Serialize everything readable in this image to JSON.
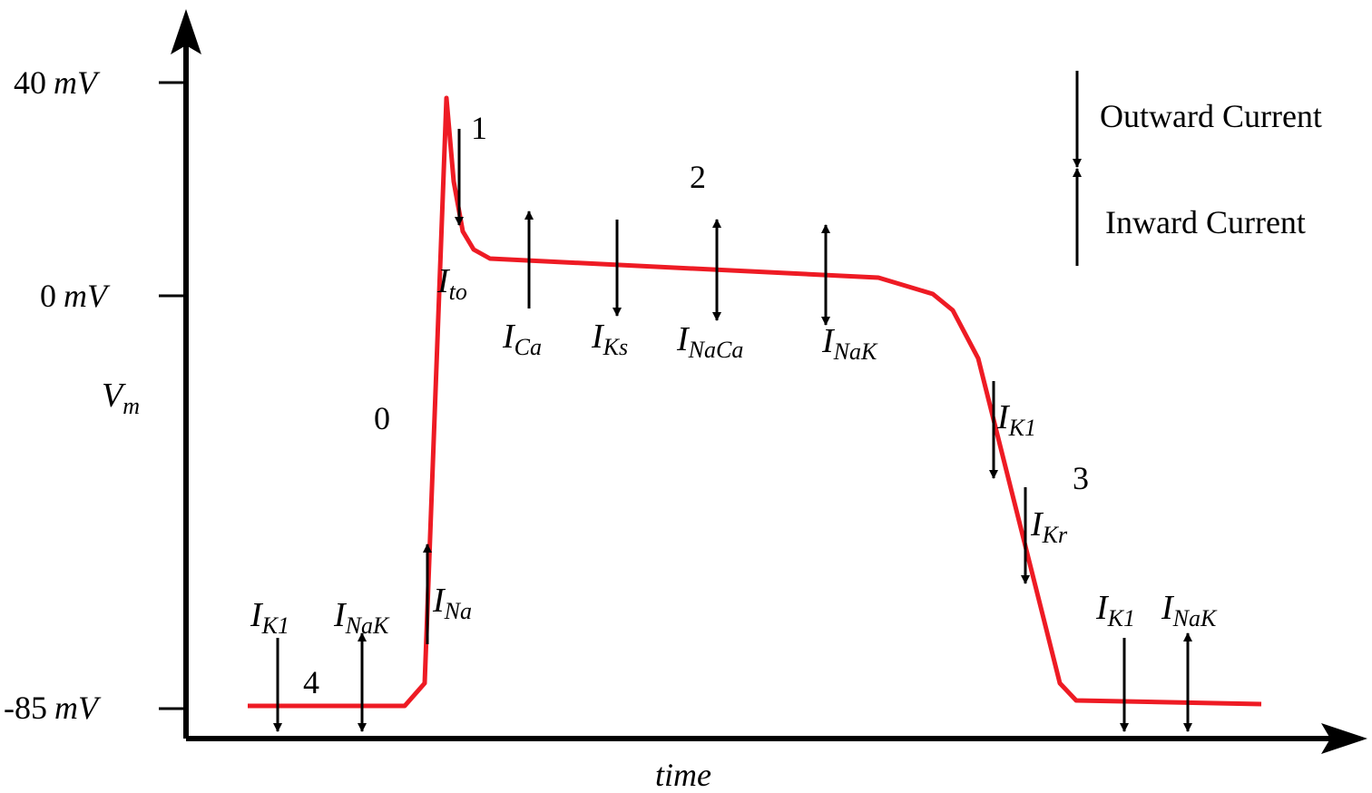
{
  "axes": {
    "y_ticks": [
      {
        "num": "40",
        "unit": "mV"
      },
      {
        "num": "0",
        "unit": "mV"
      },
      {
        "num": "-85",
        "unit": "mV"
      }
    ],
    "y_label_main": "V",
    "y_label_sub": "m",
    "x_label": "time"
  },
  "phases": [
    "0",
    "1",
    "2",
    "3",
    "4"
  ],
  "currents": [
    {
      "main": "I",
      "sub": "K1"
    },
    {
      "main": "I",
      "sub": "NaK"
    },
    {
      "main": "I",
      "sub": "Na"
    },
    {
      "main": "I",
      "sub": "to"
    },
    {
      "main": "I",
      "sub": "Ca"
    },
    {
      "main": "I",
      "sub": "Ks"
    },
    {
      "main": "I",
      "sub": "NaCa"
    },
    {
      "main": "I",
      "sub": "NaK"
    },
    {
      "main": "I",
      "sub": "K1"
    },
    {
      "main": "I",
      "sub": "Kr"
    },
    {
      "main": "I",
      "sub": "K1"
    },
    {
      "main": "I",
      "sub": "NaK"
    }
  ],
  "legend": {
    "outward": "Outward Current",
    "inward": "Inward Current"
  },
  "colors": {
    "trace": "#ee1b24",
    "axes": "#000000"
  }
}
